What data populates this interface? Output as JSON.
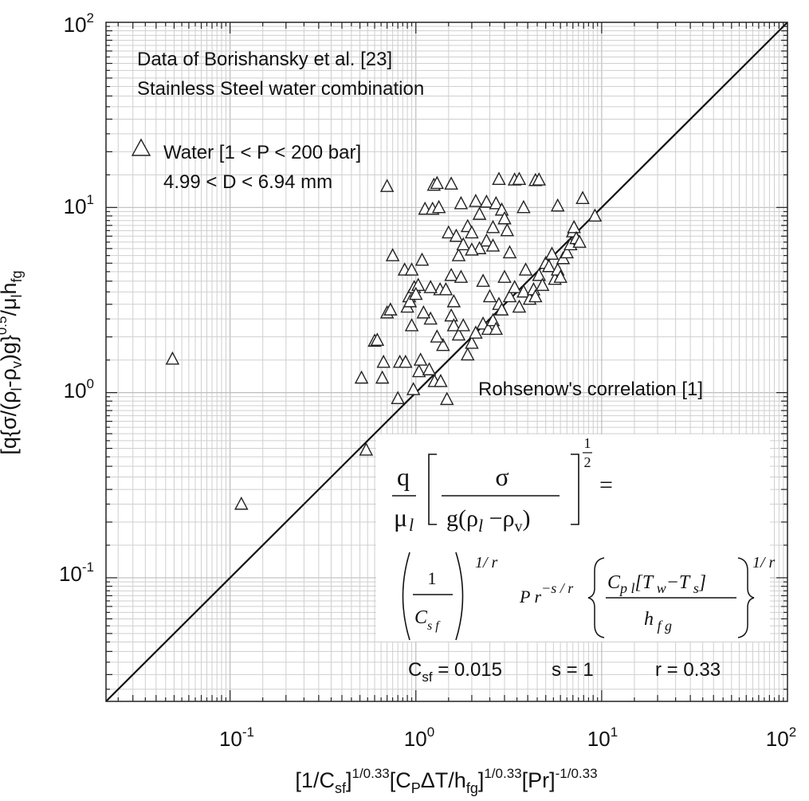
{
  "chart_data": {
    "type": "scatter",
    "scale": {
      "x": "log",
      "y": "log"
    },
    "xlim": [
      0.0215,
      100
    ],
    "ylim": [
      0.0215,
      100
    ],
    "grid": true,
    "x_ticks": [
      {
        "base": "10",
        "exp": "-1"
      },
      {
        "base": "10",
        "exp": "0"
      },
      {
        "base": "10",
        "exp": "1"
      },
      {
        "base": "10",
        "exp": "2"
      }
    ],
    "y_ticks": [
      {
        "base": "10",
        "exp": "-1"
      },
      {
        "base": "10",
        "exp": "0"
      },
      {
        "base": "10",
        "exp": "1"
      },
      {
        "base": "10",
        "exp": "2"
      }
    ],
    "xlabel": {
      "parts": [
        {
          "t": "[1/C",
          "s": "base"
        },
        {
          "t": "sf",
          "s": "sub"
        },
        {
          "t": "]",
          "s": "base"
        },
        {
          "t": "1/0.33",
          "s": "sup"
        },
        {
          "t": "[C",
          "s": "base"
        },
        {
          "t": "P",
          "s": "sub"
        },
        {
          "t": "ΔT/h",
          "s": "base"
        },
        {
          "t": "fg",
          "s": "sub"
        },
        {
          "t": "]",
          "s": "base"
        },
        {
          "t": "1/0.33",
          "s": "sup"
        },
        {
          "t": "[Pr]",
          "s": "base"
        },
        {
          "t": "-1/0.33",
          "s": "sup"
        }
      ]
    },
    "ylabel": {
      "parts": [
        {
          "t": "[q{σ/(ρ",
          "s": "base"
        },
        {
          "t": "l",
          "s": "sub"
        },
        {
          "t": "-ρ",
          "s": "base"
        },
        {
          "t": "v",
          "s": "sub"
        },
        {
          "t": ")g}",
          "s": "base"
        },
        {
          "t": "0.5",
          "s": "sup"
        },
        {
          "t": "/μ",
          "s": "base"
        },
        {
          "t": "l",
          "s": "sub"
        },
        {
          "t": "h",
          "s": "base"
        },
        {
          "t": "fg",
          "s": "sub"
        }
      ]
    },
    "annotations": {
      "source_line1": "Data of Borishansky et al. [23]",
      "source_line2": "Stainless Steel water combination",
      "legend_label": "Water [1 < P < 200 bar]",
      "legend_sub": "4.99 < D < 6.94 mm",
      "correlation_label": "Rohsenow's correlation [1]",
      "csf_base": "C",
      "csf_sub": "sf",
      "csf_value": " = 0.015",
      "s_value": "s = 1",
      "r_value": "r = 0.33"
    },
    "formula": {
      "q": "q",
      "mu": "μ",
      "mu_sub": "l",
      "sigma": "σ",
      "denominator": "g(ρ",
      "rho_l_sub": "l",
      "minus_rho": " −ρ",
      "rho_v_sub": "v",
      "close_paren": ")",
      "half_num": "1",
      "half_den": "2",
      "equals": "=",
      "one": "1",
      "csf_c": "C",
      "csf_sub": "s f",
      "exp_1r": "1/ r",
      "pr_base": "P r",
      "pr_exp": "−s / r",
      "cpl": "C",
      "cpl_sub": "p l",
      "tw": "[T",
      "tw_sub": " w",
      "ts": "−T",
      "ts_sub": " s",
      "bracket_close": "]",
      "hfg": "h",
      "hfg_sub": " f g",
      "exp_1r_b": "1/ r"
    },
    "series": [
      {
        "marker": "triangle-open",
        "points": [
          [
            0.049,
            1.52
          ],
          [
            0.115,
            0.25
          ],
          [
            0.54,
            0.49
          ],
          [
            0.51,
            1.2
          ],
          [
            0.6,
            1.9
          ],
          [
            0.62,
            1.92
          ],
          [
            0.67,
            1.46
          ],
          [
            0.66,
            1.2
          ],
          [
            0.7,
            2.7
          ],
          [
            0.73,
            2.8
          ],
          [
            0.75,
            5.5
          ],
          [
            0.8,
            0.93
          ],
          [
            0.82,
            1.46
          ],
          [
            0.88,
            1.46
          ],
          [
            0.87,
            4.6
          ],
          [
            0.9,
            2.9
          ],
          [
            0.92,
            3.3
          ],
          [
            0.93,
            3.1
          ],
          [
            0.95,
            4.6
          ],
          [
            0.97,
            1.04
          ],
          [
            0.98,
            3.7
          ],
          [
            1.03,
            3.8
          ],
          [
            1.04,
            1.3
          ],
          [
            1.06,
            1.5
          ],
          [
            1.08,
            5.2
          ],
          [
            1.12,
            9.8
          ],
          [
            1.18,
            1.33
          ],
          [
            1.2,
            2.5
          ],
          [
            1.23,
            9.8
          ],
          [
            1.26,
            1.15
          ],
          [
            1.33,
            10.0
          ],
          [
            1.36,
            1.15
          ],
          [
            1.4,
            1.8
          ],
          [
            1.47,
            0.92
          ],
          [
            1.55,
            2.6
          ],
          [
            1.55,
            4.3
          ],
          [
            1.6,
            2.3
          ],
          [
            1.7,
            2.05
          ],
          [
            1.75,
            4.2
          ],
          [
            1.8,
            2.3
          ],
          [
            1.9,
            1.6
          ],
          [
            2.0,
            1.85
          ],
          [
            2.1,
            2.1
          ],
          [
            2.3,
            2.35
          ],
          [
            2.45,
            2.2
          ],
          [
            2.6,
            2.45
          ],
          [
            2.7,
            2.2
          ],
          [
            2.8,
            3.0
          ],
          [
            2.9,
            2.8
          ],
          [
            3.0,
            4.2
          ],
          [
            3.2,
            3.3
          ],
          [
            3.4,
            3.7
          ],
          [
            3.6,
            2.9
          ],
          [
            3.8,
            3.5
          ],
          [
            3.9,
            4.6
          ],
          [
            4.1,
            3.2
          ],
          [
            4.3,
            3.6
          ],
          [
            4.4,
            3.3
          ],
          [
            4.6,
            4.3
          ],
          [
            4.8,
            3.8
          ],
          [
            5.0,
            5.0
          ],
          [
            5.2,
            4.8
          ],
          [
            5.4,
            5.6
          ],
          [
            5.6,
            4.1
          ],
          [
            5.8,
            4.6
          ],
          [
            6.0,
            4.2
          ],
          [
            6.2,
            5.3
          ],
          [
            6.5,
            5.7
          ],
          [
            6.8,
            6.3
          ],
          [
            7.0,
            7.4
          ],
          [
            7.1,
            7.8
          ],
          [
            7.3,
            6.8
          ],
          [
            7.6,
            6.5
          ],
          [
            7.9,
            11.2
          ],
          [
            9.2,
            9.0
          ],
          [
            0.7,
            13.0
          ],
          [
            1.25,
            13.2
          ],
          [
            1.3,
            13.5
          ],
          [
            1.55,
            13.4
          ],
          [
            2.1,
            10.8
          ],
          [
            2.4,
            10.7
          ],
          [
            2.8,
            14.2
          ],
          [
            3.4,
            14.1
          ],
          [
            3.6,
            14.2
          ],
          [
            4.4,
            14.0
          ],
          [
            4.6,
            14.1
          ],
          [
            1.75,
            10.5
          ],
          [
            1.9,
            7.9
          ],
          [
            2.0,
            7.3
          ],
          [
            2.2,
            9.2
          ],
          [
            2.4,
            6.6
          ],
          [
            2.6,
            7.8
          ],
          [
            2.7,
            10.5
          ],
          [
            2.9,
            9.7
          ],
          [
            3.0,
            8.7
          ],
          [
            3.1,
            7.5
          ],
          [
            2.2,
            6.0
          ],
          [
            2.6,
            6.2
          ],
          [
            3.2,
            5.7
          ],
          [
            1.5,
            7.3
          ],
          [
            1.65,
            7.0
          ],
          [
            1.7,
            5.5
          ],
          [
            1.8,
            6.3
          ],
          [
            2.0,
            5.9
          ],
          [
            1.35,
            3.6
          ],
          [
            1.45,
            3.6
          ],
          [
            1.6,
            3.1
          ],
          [
            2.3,
            4.0
          ],
          [
            2.5,
            3.3
          ],
          [
            3.8,
            10.0
          ],
          [
            5.8,
            10.2
          ],
          [
            1.0,
            3.4
          ],
          [
            1.1,
            2.7
          ],
          [
            0.95,
            2.3
          ],
          [
            1.2,
            3.7
          ],
          [
            1.3,
            2.0
          ]
        ]
      }
    ],
    "lines": [
      {
        "name": "Rohsenow's correlation",
        "from": [
          0.0215,
          0.0215
        ],
        "to": [
          100,
          100
        ]
      }
    ]
  }
}
